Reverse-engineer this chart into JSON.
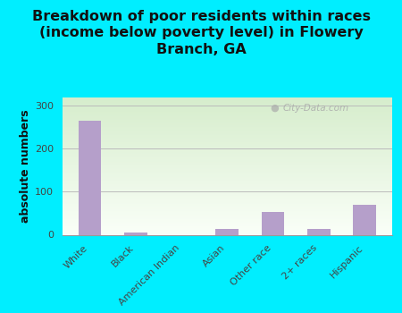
{
  "categories": [
    "White",
    "Black",
    "American Indian",
    "Asian",
    "Other race",
    "2+ races",
    "Hispanic"
  ],
  "values": [
    265,
    5,
    0,
    13,
    52,
    13,
    70
  ],
  "bar_color": "#b59fca",
  "title": "Breakdown of poor residents within races\n(income below poverty level) in Flowery\nBranch, GA",
  "ylabel": "absolute numbers",
  "ylim": [
    0,
    320
  ],
  "yticks": [
    0,
    100,
    200,
    300
  ],
  "background_color": "#00eeff",
  "plot_bg_topleft": "#d6edcc",
  "plot_bg_topright": "#e8f4e0",
  "plot_bg_bottom": "#f8fff5",
  "grid_color": "#bbbbbb",
  "watermark": "City-Data.com",
  "title_fontsize": 11.5,
  "ylabel_fontsize": 9,
  "tick_fontsize": 8
}
